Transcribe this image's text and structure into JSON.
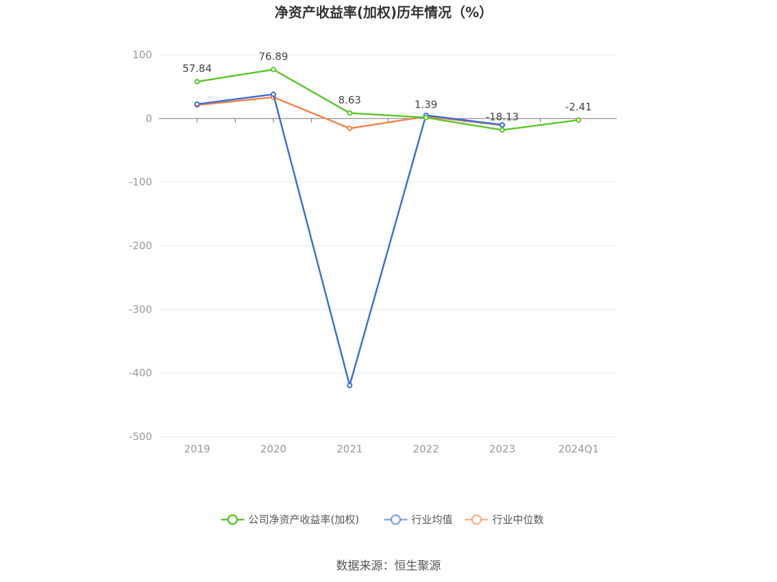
{
  "chart_data": {
    "type": "line",
    "title": "净资产收益率(加权)历年情况（%）",
    "categories": [
      "2019",
      "2020",
      "2021",
      "2022",
      "2023",
      "2024Q1"
    ],
    "ylim": [
      -500,
      100
    ],
    "yticks": [
      100,
      0,
      -100,
      -200,
      -300,
      -400,
      -500
    ],
    "grid": true,
    "legend_position": "bottom-center",
    "series": [
      {
        "name": "公司净资产收益率(加权)",
        "color": "#5cc72b",
        "values": [
          57.84,
          76.89,
          8.63,
          1.39,
          -18.13,
          -2.41
        ],
        "labels": [
          "57.84",
          "76.89",
          "8.63",
          "1.39",
          "-18.13",
          "-2.41"
        ]
      },
      {
        "name": "行业均值",
        "color": "#3a6fd8",
        "values": [
          22.5,
          38.0,
          -419.5,
          5.0,
          -10.0,
          null
        ]
      },
      {
        "name": "行业中位数",
        "color": "#f5834b",
        "values": [
          21.0,
          33.5,
          -15.5,
          3.0,
          -10.5,
          null
        ]
      }
    ]
  },
  "source": "数据来源：恒生聚源"
}
